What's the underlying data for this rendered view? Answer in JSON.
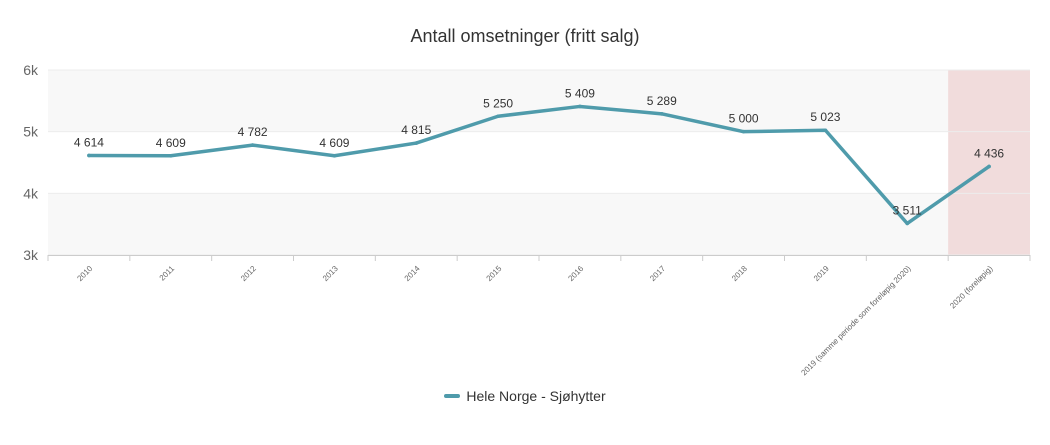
{
  "chart_data": {
    "type": "line",
    "title": "Antall omsetninger (fritt salg)",
    "categories": [
      "2010",
      "2011",
      "2012",
      "2013",
      "2014",
      "2015",
      "2016",
      "2017",
      "2018",
      "2019",
      "2019 (samme periode som foreløpig 2020)",
      "2020 (foreløpig)"
    ],
    "series": [
      {
        "name": "Hele Norge - Sjøhytter",
        "values": [
          4614,
          4609,
          4782,
          4609,
          4815,
          5250,
          5409,
          5289,
          5000,
          5023,
          3511,
          4436
        ],
        "labels": [
          "4 614",
          "4 609",
          "4 782",
          "4 609",
          "4 815",
          "5 250",
          "5 409",
          "5 289",
          "5 000",
          "5 023",
          "3 511",
          "4 436"
        ],
        "color": "#4f9bab"
      }
    ],
    "ylim": [
      3000,
      6000
    ],
    "yticks": [
      3000,
      4000,
      5000,
      6000
    ],
    "ytick_labels": [
      "3k",
      "4k",
      "5k",
      "6k"
    ],
    "highlight_categories": [
      "2020 (foreløpig)"
    ],
    "highlight_color": "#f1dcdc",
    "band_colors": [
      "#f8f8f8",
      "#ffffff"
    ],
    "grid": true,
    "legend_position": "bottom-center"
  }
}
